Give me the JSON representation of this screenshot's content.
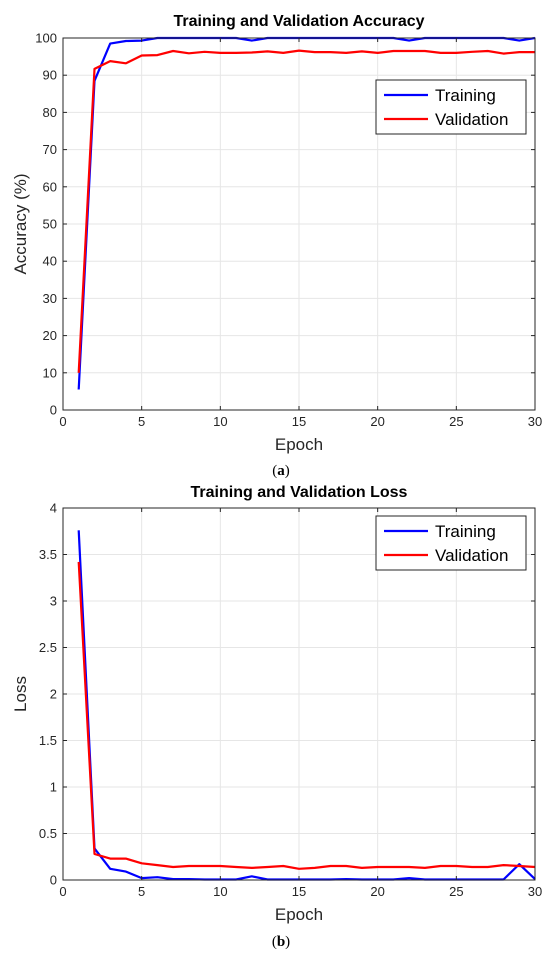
{
  "colors": {
    "training": "#0000ff",
    "validation": "#ff0000"
  },
  "chart_data": [
    {
      "type": "line",
      "title": "Training and Validation Accuracy",
      "xlabel": "Epoch",
      "ylabel": "Accuracy (%)",
      "caption_letter": "a",
      "xlim": [
        0,
        30
      ],
      "ylim": [
        0,
        100
      ],
      "xticks": [
        0,
        5,
        10,
        15,
        20,
        25,
        30
      ],
      "yticks": [
        0,
        10,
        20,
        30,
        40,
        50,
        60,
        70,
        80,
        90,
        100
      ],
      "ytick_labels": [
        "0",
        "10",
        "20",
        "30",
        "40",
        "50",
        "60",
        "70",
        "80",
        "90",
        "100"
      ],
      "grid": true,
      "legend_position": "top-right",
      "x": [
        1,
        2,
        3,
        4,
        5,
        6,
        7,
        8,
        9,
        10,
        11,
        12,
        13,
        14,
        15,
        16,
        17,
        18,
        19,
        20,
        21,
        22,
        23,
        24,
        25,
        26,
        27,
        28,
        29,
        30
      ],
      "series": [
        {
          "name": "Training",
          "color": "#0000ff",
          "values": [
            5.5,
            88.5,
            98.5,
            99.2,
            99.3,
            100,
            100,
            100,
            100,
            100,
            100,
            99.3,
            100,
            100,
            100,
            100,
            100,
            100,
            100,
            100,
            100,
            99.3,
            100,
            100,
            100,
            100,
            100,
            100,
            99.3,
            100
          ]
        },
        {
          "name": "Validation",
          "color": "#ff0000",
          "values": [
            10,
            91.7,
            93.8,
            93.2,
            95.3,
            95.4,
            96.5,
            95.9,
            96.3,
            96.0,
            96.0,
            96.1,
            96.4,
            96.0,
            96.6,
            96.2,
            96.2,
            96.0,
            96.4,
            96.0,
            96.5,
            96.5,
            96.5,
            96.0,
            96.0,
            96.3,
            96.5,
            95.8,
            96.2,
            96.2
          ]
        }
      ]
    },
    {
      "type": "line",
      "title": "Training and Validation Loss",
      "xlabel": "Epoch",
      "ylabel": "Loss",
      "caption_letter": "b",
      "xlim": [
        0,
        30
      ],
      "ylim": [
        0,
        4
      ],
      "xticks": [
        0,
        5,
        10,
        15,
        20,
        25,
        30
      ],
      "yticks": [
        0,
        0.5,
        1,
        1.5,
        2,
        2.5,
        3,
        3.5,
        4
      ],
      "ytick_labels": [
        "0",
        "0.5",
        "1",
        "1.5",
        "2",
        "2.5",
        "3",
        "3.5",
        "4"
      ],
      "grid": true,
      "legend_position": "top-right",
      "x": [
        1,
        2,
        3,
        4,
        5,
        6,
        7,
        8,
        9,
        10,
        11,
        12,
        13,
        14,
        15,
        16,
        17,
        18,
        19,
        20,
        21,
        22,
        23,
        24,
        25,
        26,
        27,
        28,
        29,
        30
      ],
      "series": [
        {
          "name": "Training",
          "color": "#0000ff",
          "values": [
            3.76,
            0.34,
            0.12,
            0.09,
            0.02,
            0.03,
            0.01,
            0.01,
            0.005,
            0.005,
            0.005,
            0.04,
            0.005,
            0.005,
            0.005,
            0.005,
            0.005,
            0.01,
            0.005,
            0.005,
            0.005,
            0.02,
            0.005,
            0.005,
            0.005,
            0.005,
            0.005,
            0.005,
            0.17,
            0.01
          ]
        },
        {
          "name": "Validation",
          "color": "#ff0000",
          "values": [
            3.42,
            0.28,
            0.23,
            0.23,
            0.18,
            0.16,
            0.14,
            0.15,
            0.15,
            0.15,
            0.14,
            0.13,
            0.14,
            0.15,
            0.12,
            0.13,
            0.15,
            0.15,
            0.13,
            0.14,
            0.14,
            0.14,
            0.13,
            0.15,
            0.15,
            0.14,
            0.14,
            0.16,
            0.15,
            0.14
          ]
        }
      ]
    }
  ]
}
